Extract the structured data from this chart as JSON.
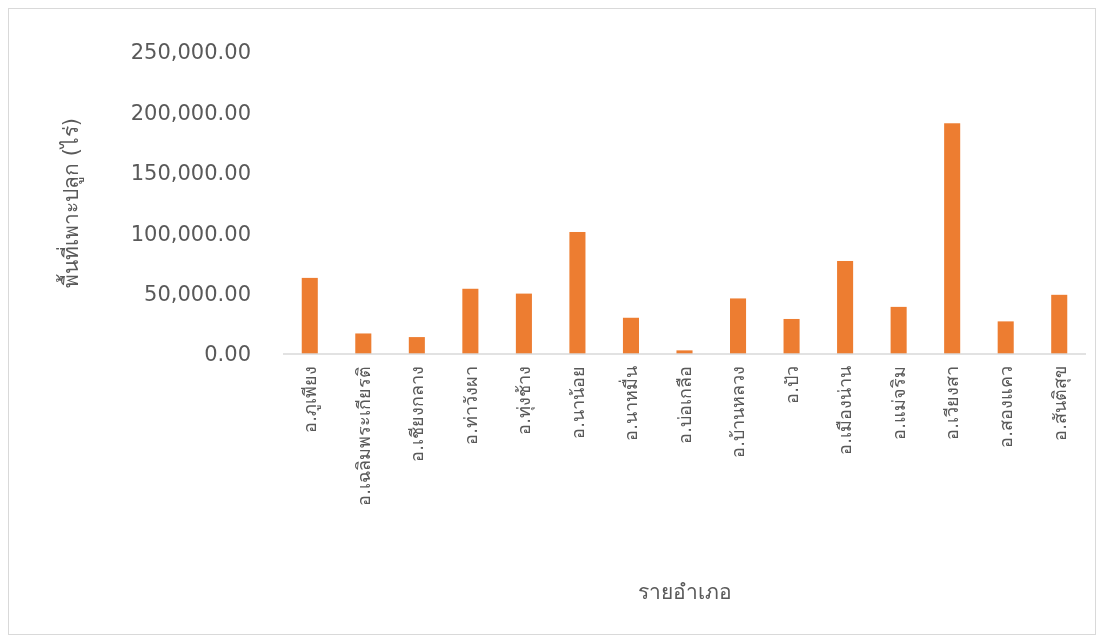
{
  "chart_data": {
    "type": "bar",
    "xlabel": "รายอำเภอ",
    "ylabel": "พื้นที่เพาะปลูก (ไร่)",
    "categories": [
      "อ.ภูเพียง",
      "อ.เฉลิมพระเกียรติ",
      "อ.เชียงกลาง",
      "อ.ท่าวังผา",
      "อ.ทุ่งช้าง",
      "อ.นาน้อย",
      "อ.นาหมื่น",
      "อ.บ่อเกลือ",
      "อ.บ้านหลวง",
      "อ.ปัว",
      "อ.เมืองน่าน",
      "อ.แม่จริม",
      "อ.เวียงสา",
      "อ.สองแคว",
      "อ.สันติสุข"
    ],
    "values": [
      63000,
      17000,
      14000,
      54000,
      50000,
      101000,
      30000,
      3000,
      46000,
      29000,
      77000,
      39000,
      191000,
      27000,
      49000
    ],
    "color": "#ed7d31",
    "ylim": [
      0,
      250000
    ],
    "yticks": [
      {
        "value": 0,
        "label": "0.00"
      },
      {
        "value": 50000,
        "label": "50,000.00"
      },
      {
        "value": 100000,
        "label": "100,000.00"
      },
      {
        "value": 150000,
        "label": "150,000.00"
      },
      {
        "value": 200000,
        "label": "200,000.00"
      },
      {
        "value": 250000,
        "label": "250,000.00"
      }
    ],
    "grid": false
  }
}
